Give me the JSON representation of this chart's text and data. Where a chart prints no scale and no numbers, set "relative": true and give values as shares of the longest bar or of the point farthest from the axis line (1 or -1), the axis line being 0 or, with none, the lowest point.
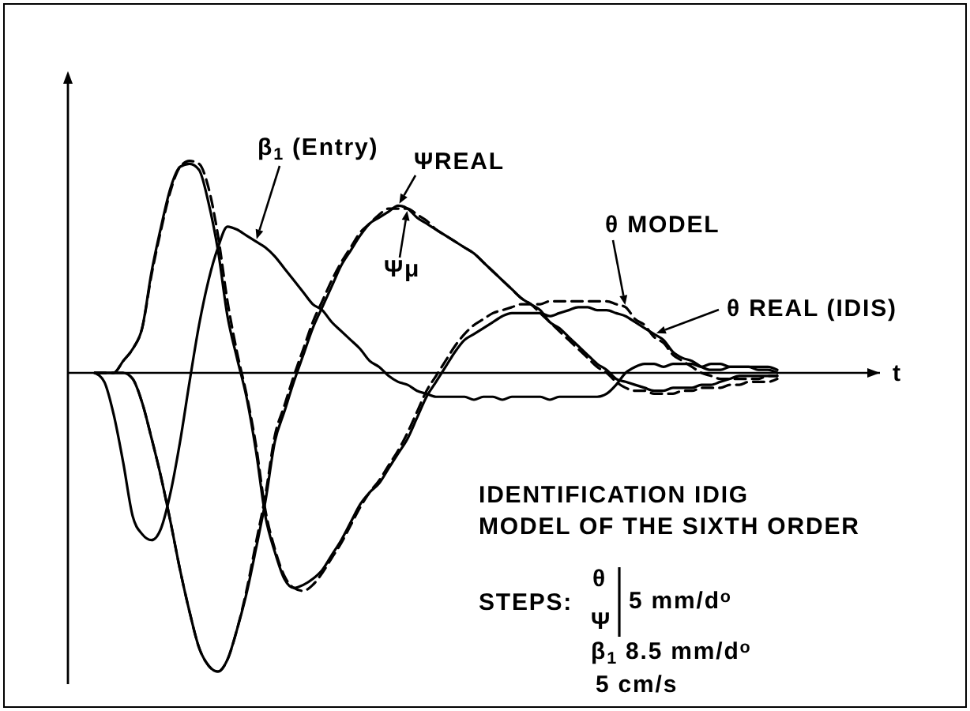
{
  "chart_data": {
    "type": "line",
    "relative": true,
    "xlabel": "t",
    "categories": [
      null,
      null,
      null,
      null,
      null,
      null,
      null,
      null,
      null,
      null,
      null,
      null,
      null,
      null,
      null,
      null,
      null,
      null,
      null,
      null,
      null,
      null,
      null,
      null,
      null,
      null,
      null,
      null,
      null,
      null,
      null,
      null,
      null,
      null,
      null,
      null,
      null,
      null,
      null,
      null,
      null,
      null,
      null,
      null,
      null,
      null,
      null,
      null,
      null,
      null,
      null,
      null,
      null,
      null,
      null,
      null,
      null,
      null,
      null,
      null,
      null,
      null,
      null,
      null,
      null,
      null,
      null,
      null,
      null,
      null,
      null,
      null,
      null,
      null,
      null,
      null,
      null,
      null,
      null,
      null,
      null
    ],
    "series": [
      {
        "name": "β$_{1}$ (Entry)",
        "color": "#000000",
        "line_style": "solid",
        "values": [
          0,
          -0.03,
          -0.14,
          -0.3,
          -0.48,
          -0.54,
          -0.56,
          -0.52,
          -0.4,
          -0.23,
          -0.03,
          0.16,
          0.31,
          0.42,
          0.49,
          0.48,
          0.46,
          0.44,
          0.42,
          0.39,
          0.35,
          0.31,
          0.27,
          0.23,
          0.21,
          0.17,
          0.14,
          0.11,
          0.08,
          0.04,
          0.02,
          -0.01,
          -0.03,
          -0.04,
          -0.06,
          -0.07,
          -0.08,
          -0.08,
          -0.08,
          -0.08,
          -0.09,
          -0.08,
          -0.08,
          -0.09,
          -0.08,
          -0.08,
          -0.08,
          -0.08,
          -0.09,
          -0.08,
          -0.08,
          -0.08,
          -0.08,
          -0.08,
          -0.07,
          -0.04,
          0,
          0.02,
          0.03,
          0.03,
          0.02,
          0.03,
          0.03,
          0.03,
          0.02,
          0.03,
          0.03,
          0.02,
          0.02,
          0.02,
          0.02,
          0.02,
          0.01,
          null,
          null,
          null,
          null,
          null,
          null,
          null,
          null
        ]
      },
      {
        "name": "ΨREAL",
        "color": "#000000",
        "line_style": "solid",
        "values": [
          0,
          0,
          0,
          0,
          -0.02,
          -0.1,
          -0.22,
          -0.35,
          -0.5,
          -0.66,
          -0.8,
          -0.92,
          -0.98,
          -1,
          -0.96,
          -0.86,
          -0.74,
          -0.59,
          -0.43,
          -0.23,
          -0.13,
          -0.03,
          0.06,
          0.15,
          0.22,
          0.29,
          0.36,
          0.41,
          0.46,
          0.5,
          0.52,
          0.54,
          0.56,
          0.55,
          0.52,
          0.5,
          0.48,
          0.46,
          0.44,
          0.42,
          0.4,
          0.37,
          0.34,
          0.31,
          0.28,
          0.25,
          0.23,
          0.21,
          0.17,
          0.15,
          0.12,
          0.09,
          0.06,
          0.03,
          0.01,
          -0.02,
          -0.03,
          -0.04,
          -0.05,
          -0.06,
          -0.06,
          -0.05,
          -0.05,
          -0.05,
          -0.04,
          -0.04,
          -0.03,
          -0.02,
          -0.01,
          -0.01,
          -0.01,
          -0.01,
          -0.01,
          null,
          null,
          null,
          null,
          null,
          null,
          null,
          null
        ]
      },
      {
        "name": "Ψμ",
        "color": "#000000",
        "line_style": "dashed",
        "values": [
          0,
          0,
          0,
          0,
          -0.02,
          -0.1,
          -0.22,
          -0.35,
          -0.5,
          -0.66,
          -0.8,
          -0.92,
          -0.98,
          -1,
          -0.96,
          -0.86,
          -0.73,
          -0.57,
          -0.41,
          -0.21,
          -0.11,
          -0.01,
          0.08,
          0.17,
          0.24,
          0.31,
          0.37,
          0.42,
          0.47,
          0.5,
          0.53,
          0.55,
          0.55,
          0.55,
          0.53,
          0.51,
          0.48,
          0.46,
          0.44,
          0.42,
          0.4,
          0.37,
          0.34,
          0.31,
          0.28,
          0.25,
          0.23,
          0.2,
          0.17,
          0.14,
          0.11,
          0.08,
          0.05,
          0.02,
          0,
          -0.03,
          -0.05,
          -0.06,
          -0.06,
          -0.07,
          -0.07,
          -0.07,
          -0.06,
          -0.06,
          -0.05,
          -0.05,
          -0.05,
          -0.04,
          -0.04,
          -0.03,
          -0.03,
          -0.03,
          -0.02,
          null,
          null,
          null,
          null,
          null,
          null,
          null,
          null
        ]
      },
      {
        "name": "θ MODEL",
        "color": "#000000",
        "line_style": "dashed",
        "values": [
          0,
          0,
          0,
          0.04,
          0.08,
          0.15,
          0.33,
          0.48,
          0.61,
          0.69,
          0.71,
          0.7,
          0.62,
          0.46,
          0.24,
          0.07,
          -0.07,
          -0.24,
          -0.46,
          -0.59,
          -0.68,
          -0.72,
          -0.73,
          -0.71,
          -0.67,
          -0.62,
          -0.57,
          -0.51,
          -0.45,
          -0.4,
          -0.36,
          -0.31,
          -0.26,
          -0.2,
          -0.13,
          -0.06,
          -0.01,
          0.04,
          0.09,
          0.13,
          0.16,
          0.18,
          0.2,
          0.21,
          0.22,
          0.23,
          0.23,
          0.23,
          0.24,
          0.24,
          0.24,
          0.24,
          0.24,
          0.24,
          0.24,
          0.23,
          0.22,
          0.18,
          0.16,
          0.12,
          0.1,
          0.06,
          0.04,
          0.02,
          0,
          -0.01,
          -0.02,
          -0.02,
          -0.02,
          -0.02,
          -0.02,
          -0.01,
          -0.01,
          null,
          null,
          null,
          null,
          null,
          null,
          null,
          null
        ]
      },
      {
        "name": "θ REAL (IDIS)",
        "color": "#000000",
        "line_style": "solid",
        "values": [
          0,
          0,
          0,
          0.04,
          0.08,
          0.15,
          0.34,
          0.49,
          0.62,
          0.69,
          0.7,
          0.68,
          0.57,
          0.41,
          0.19,
          0.05,
          -0.08,
          -0.26,
          -0.48,
          -0.6,
          -0.69,
          -0.72,
          -0.71,
          -0.69,
          -0.66,
          -0.61,
          -0.56,
          -0.5,
          -0.44,
          -0.4,
          -0.37,
          -0.32,
          -0.27,
          -0.22,
          -0.15,
          -0.08,
          -0.03,
          0.02,
          0.07,
          0.11,
          0.13,
          0.15,
          0.17,
          0.19,
          0.2,
          0.2,
          0.2,
          0.2,
          0.19,
          0.2,
          0.21,
          0.22,
          0.22,
          0.21,
          0.21,
          0.2,
          0.19,
          0.17,
          0.15,
          0.13,
          0.11,
          0.07,
          0.05,
          0.04,
          0.02,
          0.01,
          0.01,
          0.02,
          0.02,
          0.02,
          0.01,
          0.01,
          0,
          null,
          null,
          null,
          null,
          null,
          null,
          null,
          null
        ]
      }
    ],
    "annotations": [
      "IDENTIFICATION IDIG",
      "MODEL OF THE SIXTH ORDER",
      "STEPS:",
      "θ",
      "Ψ",
      "5 mm/d$^{o}$",
      "β$_{1}$ 8.5 mm/d$^{o}$",
      "5 cm/s"
    ]
  }
}
